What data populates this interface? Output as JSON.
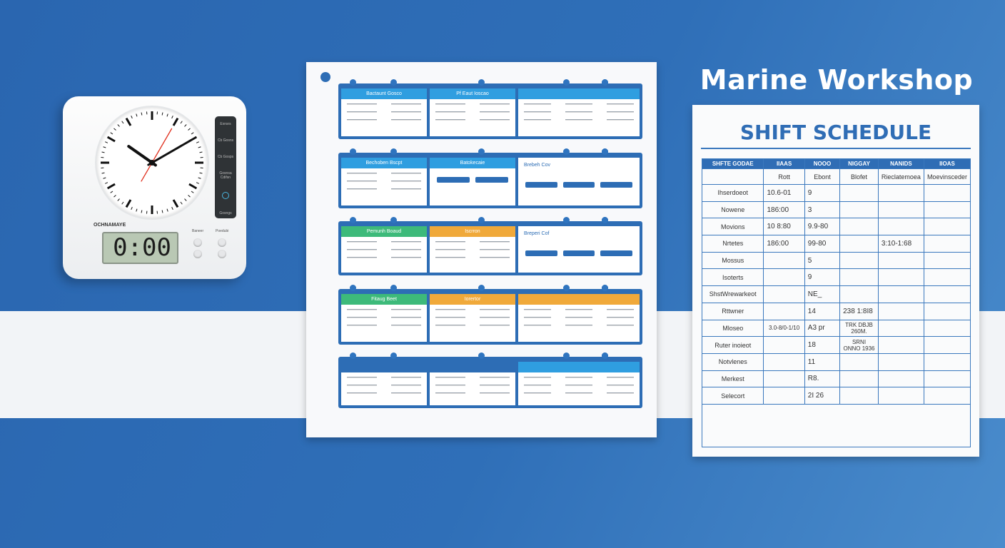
{
  "colors": {
    "blue": "#2d6db5",
    "green": "#3dba7a",
    "orange": "#f0a93a",
    "light_blue": "#2f9ee0"
  },
  "clock": {
    "brand": "OCHNAMAYE",
    "digital": "0:00",
    "panel": [
      "Exnsrs",
      "Cb Gosns",
      "Cb Gosps",
      "Gosnsa Cdifsn",
      "Gosngs"
    ],
    "button_labels": [
      "Baneer",
      "Poedubi"
    ],
    "analog_time": "10:10:33"
  },
  "board": {
    "rows": [
      {
        "cards": [
          {
            "title": "Bactaunt Gosco",
            "color": "light_blue",
            "type": "lines"
          },
          {
            "title": "Pf Eaut Ioscao",
            "color": "light_blue",
            "type": "lines"
          },
          {
            "title": "",
            "color": "light_blue",
            "type": "lines"
          }
        ]
      },
      {
        "cards": [
          {
            "title": "Bechoben Bscpt",
            "color": "light_blue",
            "type": "lines"
          },
          {
            "title": "Batokecaie",
            "color": "light_blue",
            "type": "bars"
          },
          {
            "title": "Brebeh Cov",
            "color": "none",
            "type": "bars"
          }
        ]
      },
      {
        "cards": [
          {
            "title": "Pemunh Boaud",
            "color": "green",
            "type": "lines"
          },
          {
            "title": "Iscrron",
            "color": "orange",
            "type": "lines"
          },
          {
            "title": "Breperi Cof",
            "color": "none",
            "type": "bars"
          }
        ]
      },
      {
        "cards": [
          {
            "title": "Fitaug Beet",
            "color": "green",
            "type": "lines"
          },
          {
            "title": "Iorertor",
            "color": "orange",
            "type": "lines"
          },
          {
            "title": "",
            "color": "orange",
            "type": "lines"
          }
        ]
      },
      {
        "cards": [
          {
            "title": "",
            "color": "blue",
            "type": "lines"
          },
          {
            "title": "",
            "color": "blue",
            "type": "lines"
          },
          {
            "title": "",
            "color": "light_blue",
            "type": "lines"
          }
        ]
      }
    ]
  },
  "schedule": {
    "title": "Marine Workshop",
    "subtitle": "SHIFT SCHEDULE",
    "headers": [
      "SHFTE GODAE",
      "IIAAS",
      "NOOO",
      "NIGGAY",
      "NANIDS",
      "IIOAS"
    ],
    "subheaders": [
      "",
      "Rott",
      "Ebont",
      "Blofet",
      "Rieclatemoea",
      "Moevinsceder"
    ],
    "rows": [
      [
        "Ihserdoeot",
        "10.6-01",
        "9",
        "",
        "",
        ""
      ],
      [
        "Nowene",
        "186:00",
        "3",
        "",
        "",
        ""
      ],
      [
        "Movions",
        "10 8:80",
        "9.9-80",
        "",
        "",
        ""
      ],
      [
        "Nrtetes",
        "186:00",
        "99-80",
        "",
        "3:10-1:68",
        ""
      ],
      [
        "Mossus",
        "",
        "5",
        "",
        "",
        ""
      ],
      [
        "Isoterts",
        "",
        "9",
        "",
        "",
        ""
      ],
      [
        "ShstWrewarkeot",
        "",
        "NE_",
        "",
        "",
        ""
      ],
      [
        "Rttwner",
        "",
        "14",
        "238 1:8I8",
        "",
        ""
      ],
      [
        "Mloseo",
        "3.0-8/0-1/10",
        "A3 pr",
        "TRK DBJB 260M.",
        "",
        ""
      ],
      [
        "Ruter inoieot",
        "",
        "18",
        "SRNI ONNO 1936",
        "",
        ""
      ],
      [
        "Notvlenes",
        "",
        "11",
        "",
        "",
        ""
      ],
      [
        "Merkest",
        "",
        "R8.",
        "",
        "",
        ""
      ],
      [
        "Selecort",
        "",
        "2I 26",
        "",
        "",
        ""
      ]
    ]
  }
}
